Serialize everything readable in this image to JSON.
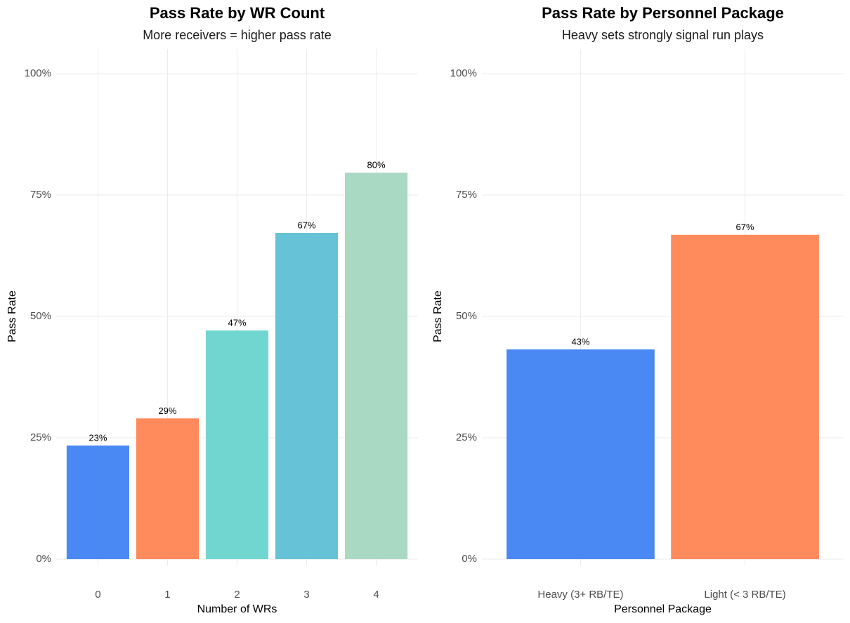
{
  "chart_data": [
    {
      "type": "bar",
      "title": "Pass Rate by WR Count",
      "subtitle": "More receivers = higher pass rate",
      "x_label": "Number of WRs",
      "y_label": "Pass Rate",
      "categories": [
        "0",
        "1",
        "2",
        "3",
        "4"
      ],
      "values": [
        23.4,
        29.0,
        47.1,
        67.2,
        79.6
      ],
      "value_labels": [
        "23%",
        "29%",
        "47%",
        "67%",
        "80%"
      ],
      "colors": [
        "#4a89f3",
        "#ff8a5c",
        "#72d6d0",
        "#66c2d6",
        "#a9d8c3"
      ],
      "ylim": [
        0,
        100
      ],
      "yticks": [
        {
          "value": 0,
          "label": "0%"
        },
        {
          "value": 25,
          "label": "25%"
        },
        {
          "value": 50,
          "label": "50%"
        },
        {
          "value": 75,
          "label": "75%"
        },
        {
          "value": 100,
          "label": "100%"
        }
      ],
      "grid": true
    },
    {
      "type": "bar",
      "title": "Pass Rate by Personnel Package",
      "subtitle": "Heavy sets strongly signal run plays",
      "x_label": "Personnel Package",
      "y_label": "Pass Rate",
      "categories": [
        "Heavy (3+ RB/TE)",
        "Light (< 3 RB/TE)"
      ],
      "values": [
        43.2,
        66.8
      ],
      "value_labels": [
        "43%",
        "67%"
      ],
      "colors": [
        "#4a89f3",
        "#ff8a5c"
      ],
      "ylim": [
        0,
        100
      ],
      "yticks": [
        {
          "value": 0,
          "label": "0%"
        },
        {
          "value": 25,
          "label": "25%"
        },
        {
          "value": 50,
          "label": "50%"
        },
        {
          "value": 75,
          "label": "75%"
        },
        {
          "value": 100,
          "label": "100%"
        }
      ],
      "grid": true
    }
  ]
}
